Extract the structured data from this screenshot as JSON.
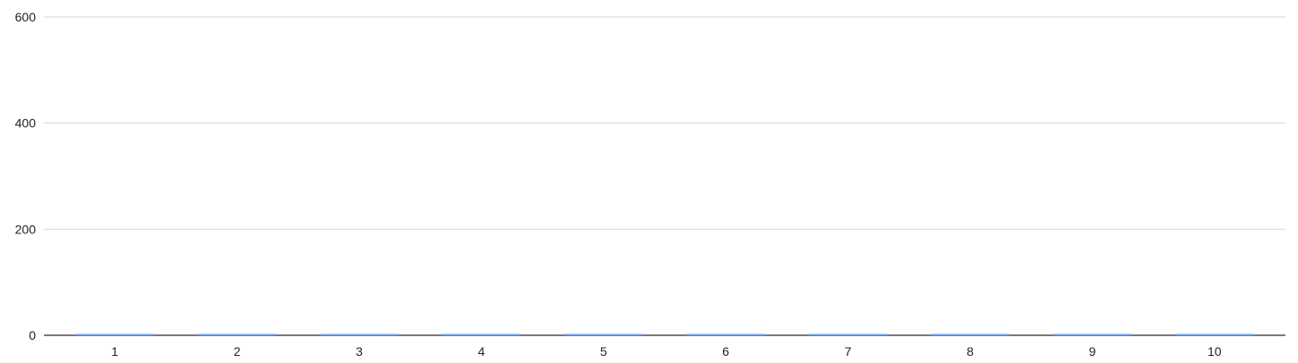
{
  "chart_data": {
    "type": "bar",
    "categories": [
      "1",
      "2",
      "3",
      "4",
      "5",
      "6",
      "7",
      "8",
      "9",
      "10"
    ],
    "values": [
      0,
      0,
      0,
      0,
      0,
      0,
      0,
      0,
      0,
      0
    ],
    "ylim": [
      0,
      600
    ],
    "yticks": [
      0,
      200,
      400,
      600
    ],
    "ytick_labels": [
      "0",
      "200",
      "400",
      "600"
    ],
    "grid": true,
    "legend": "none",
    "colors": {
      "bar": "#7aa6f7",
      "grid": "#d6d6d6",
      "baseline": "#4d4d4d",
      "text": "#222222"
    }
  }
}
